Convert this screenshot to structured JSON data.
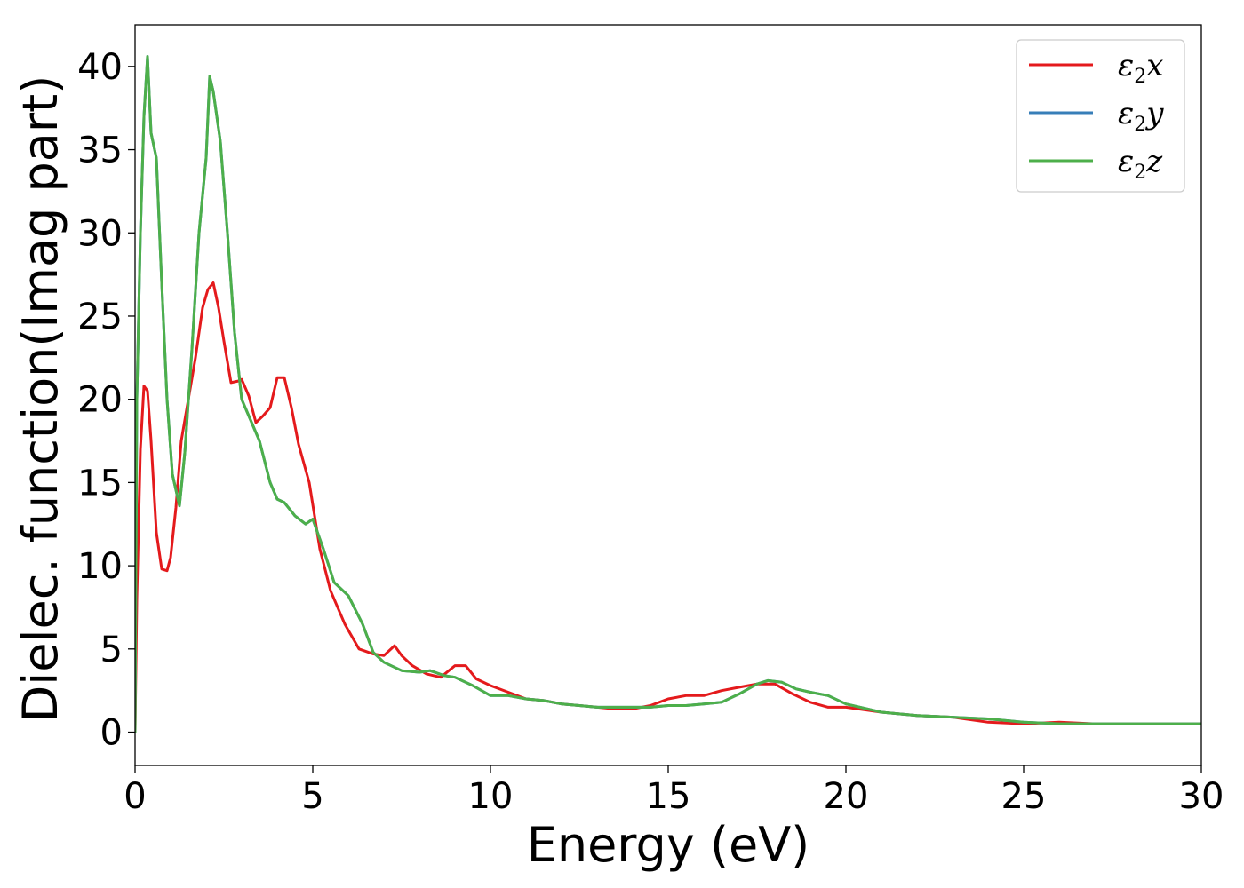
{
  "chart_data": {
    "type": "line",
    "xlabel": "Energy (eV)",
    "ylabel": "Dielec. function(Imag part)",
    "xlim": [
      0,
      30
    ],
    "ylim": [
      -2,
      42.5
    ],
    "xticks": [
      0,
      5,
      10,
      15,
      20,
      25,
      30
    ],
    "yticks": [
      0,
      5,
      10,
      15,
      20,
      25,
      30,
      35,
      40
    ],
    "grid": false,
    "legend_position": "top-right",
    "series": [
      {
        "name": "ε2x",
        "legend": {
          "base": "ε",
          "sub": "2",
          "var": "x"
        },
        "color": "#e41a1c",
        "x": [
          0,
          0.05,
          0.15,
          0.25,
          0.35,
          0.45,
          0.6,
          0.75,
          0.9,
          1.0,
          1.15,
          1.3,
          1.5,
          1.7,
          1.9,
          2.05,
          2.2,
          2.35,
          2.5,
          2.7,
          2.9,
          3.0,
          3.2,
          3.4,
          3.6,
          3.8,
          4.0,
          4.2,
          4.4,
          4.6,
          4.9,
          5.2,
          5.5,
          5.9,
          6.3,
          6.7,
          7.0,
          7.3,
          7.5,
          7.8,
          8.2,
          8.6,
          9.0,
          9.3,
          9.6,
          10.0,
          10.5,
          11.0,
          11.5,
          12.0,
          12.5,
          13.0,
          13.5,
          14.0,
          14.5,
          15.0,
          15.5,
          16.0,
          16.5,
          17.0,
          17.5,
          18.0,
          18.5,
          19.0,
          19.5,
          20.0,
          21.0,
          22.0,
          23.0,
          24.0,
          25.0,
          26.0,
          27.0,
          28.0,
          29.0,
          30.0
        ],
        "y": [
          0,
          8,
          17,
          20.8,
          20.5,
          17.5,
          12,
          9.8,
          9.7,
          10.5,
          13.5,
          17.5,
          20,
          22.5,
          25.5,
          26.6,
          27.0,
          25.5,
          23.5,
          21.0,
          21.1,
          21.2,
          20.2,
          18.6,
          19.0,
          19.5,
          21.3,
          21.3,
          19.5,
          17.3,
          15.0,
          11.0,
          8.5,
          6.5,
          5.0,
          4.7,
          4.6,
          5.2,
          4.6,
          4.0,
          3.5,
          3.3,
          4.0,
          4.0,
          3.2,
          2.8,
          2.4,
          2.0,
          1.9,
          1.7,
          1.6,
          1.5,
          1.4,
          1.4,
          1.6,
          2.0,
          2.2,
          2.2,
          2.5,
          2.7,
          2.9,
          2.9,
          2.3,
          1.8,
          1.5,
          1.5,
          1.2,
          1.0,
          0.9,
          0.6,
          0.5,
          0.6,
          0.5,
          0.5,
          0.5,
          0.5
        ]
      },
      {
        "name": "ε2y",
        "legend": {
          "base": "ε",
          "sub": "2",
          "var": "y"
        },
        "color": "#377eb8",
        "x": [
          0,
          0.05,
          0.15,
          0.25,
          0.35,
          0.45,
          0.6,
          0.75,
          0.9,
          1.05,
          1.25,
          1.4,
          1.6,
          1.8,
          2.0,
          2.1,
          2.2,
          2.4,
          2.6,
          2.8,
          3.0,
          3.2,
          3.5,
          3.8,
          4.0,
          4.2,
          4.5,
          4.8,
          5.0,
          5.3,
          5.6,
          6.0,
          6.4,
          6.7,
          7.0,
          7.5,
          8.0,
          8.3,
          8.7,
          9.0,
          9.5,
          10.0,
          10.5,
          11.0,
          11.5,
          12.0,
          12.5,
          13.0,
          13.5,
          14.0,
          14.5,
          15.0,
          15.5,
          16.0,
          16.5,
          17.0,
          17.5,
          17.8,
          18.2,
          18.6,
          19.0,
          19.5,
          20.0,
          21.0,
          22.0,
          23.0,
          24.0,
          25.0,
          26.0,
          27.0,
          28.0,
          29.0,
          30.0
        ],
        "y": [
          0,
          20,
          30,
          37,
          40.6,
          36,
          34.5,
          27,
          20,
          15.5,
          13.6,
          16.8,
          23,
          30,
          34.5,
          39.4,
          38.5,
          35.5,
          30,
          24,
          20.0,
          19.0,
          17.5,
          15.0,
          14.0,
          13.8,
          13.0,
          12.5,
          12.8,
          11.0,
          9.0,
          8.2,
          6.5,
          4.8,
          4.2,
          3.7,
          3.6,
          3.7,
          3.4,
          3.3,
          2.8,
          2.2,
          2.2,
          2.0,
          1.9,
          1.7,
          1.6,
          1.5,
          1.5,
          1.5,
          1.5,
          1.6,
          1.6,
          1.7,
          1.8,
          2.3,
          2.9,
          3.1,
          3.0,
          2.6,
          2.4,
          2.2,
          1.7,
          1.2,
          1.0,
          0.9,
          0.8,
          0.6,
          0.5,
          0.5,
          0.5,
          0.5,
          0.5
        ]
      },
      {
        "name": "ε2z",
        "legend": {
          "base": "ε",
          "sub": "2",
          "var": "z"
        },
        "color": "#4daf4a",
        "x": [
          0,
          0.05,
          0.15,
          0.25,
          0.35,
          0.45,
          0.6,
          0.75,
          0.9,
          1.05,
          1.25,
          1.4,
          1.6,
          1.8,
          2.0,
          2.1,
          2.2,
          2.4,
          2.6,
          2.8,
          3.0,
          3.2,
          3.5,
          3.8,
          4.0,
          4.2,
          4.5,
          4.8,
          5.0,
          5.3,
          5.6,
          6.0,
          6.4,
          6.7,
          7.0,
          7.5,
          8.0,
          8.3,
          8.7,
          9.0,
          9.5,
          10.0,
          10.5,
          11.0,
          11.5,
          12.0,
          12.5,
          13.0,
          13.5,
          14.0,
          14.5,
          15.0,
          15.5,
          16.0,
          16.5,
          17.0,
          17.5,
          17.8,
          18.2,
          18.6,
          19.0,
          19.5,
          20.0,
          21.0,
          22.0,
          23.0,
          24.0,
          25.0,
          26.0,
          27.0,
          28.0,
          29.0,
          30.0
        ],
        "y": [
          0,
          20,
          30,
          37,
          40.6,
          36,
          34.5,
          27,
          20,
          15.5,
          13.6,
          16.8,
          23,
          30,
          34.5,
          39.4,
          38.5,
          35.5,
          30,
          24,
          20.0,
          19.0,
          17.5,
          15.0,
          14.0,
          13.8,
          13.0,
          12.5,
          12.8,
          11.0,
          9.0,
          8.2,
          6.5,
          4.8,
          4.2,
          3.7,
          3.6,
          3.7,
          3.4,
          3.3,
          2.8,
          2.2,
          2.2,
          2.0,
          1.9,
          1.7,
          1.6,
          1.5,
          1.5,
          1.5,
          1.5,
          1.6,
          1.6,
          1.7,
          1.8,
          2.3,
          2.9,
          3.1,
          3.0,
          2.6,
          2.4,
          2.2,
          1.7,
          1.2,
          1.0,
          0.9,
          0.8,
          0.6,
          0.5,
          0.5,
          0.5,
          0.5,
          0.5
        ]
      }
    ]
  }
}
